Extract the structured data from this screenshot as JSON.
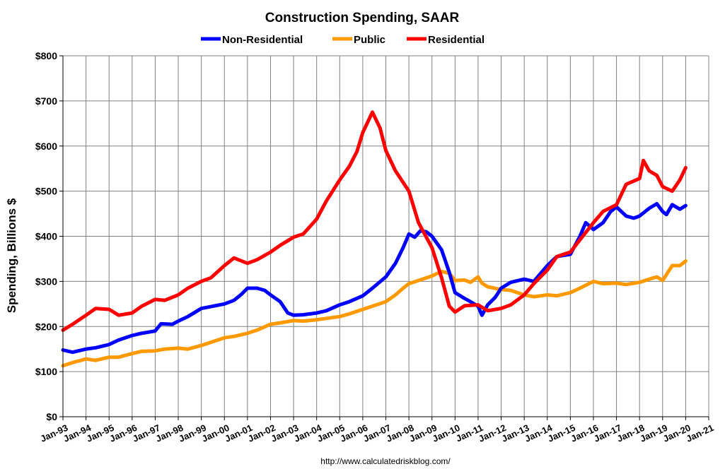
{
  "chart_data": {
    "type": "line",
    "title": "Construction Spending, SAAR",
    "ylabel": "Spending, Billions $",
    "xlabel": "",
    "source": "http://www.calculatedriskblog.com/",
    "ylim": [
      0,
      800
    ],
    "y_ticks": [
      "$0",
      "$100",
      "$200",
      "$300",
      "$400",
      "$500",
      "$600",
      "$700",
      "$800"
    ],
    "x_ticks": [
      "Jan-93",
      "Jan-94",
      "Jan-95",
      "Jan-96",
      "Jan-97",
      "Jan-98",
      "Jan-99",
      "Jan-00",
      "Jan-01",
      "Jan-02",
      "Jan-03",
      "Jan-04",
      "Jan-05",
      "Jan-06",
      "Jan-07",
      "Jan-08",
      "Jan-09",
      "Jan-10",
      "Jan-11",
      "Jan-12",
      "Jan-13",
      "Jan-14",
      "Jan-15",
      "Jan-16",
      "Jan-17",
      "Jan-18",
      "Jan-19",
      "Jan-20",
      "Jan-21"
    ],
    "grid": true,
    "legend_position": "top-center",
    "series": [
      {
        "name": "Non-Residential",
        "color": "#0000FF",
        "points": [
          [
            "1993-01",
            148
          ],
          [
            "1993-06",
            143
          ],
          [
            "1994-01",
            150
          ],
          [
            "1994-06",
            153
          ],
          [
            "1995-01",
            160
          ],
          [
            "1995-06",
            170
          ],
          [
            "1996-01",
            180
          ],
          [
            "1996-06",
            185
          ],
          [
            "1997-01",
            190
          ],
          [
            "1997-04",
            206
          ],
          [
            "1997-10",
            205
          ],
          [
            "1998-01",
            212
          ],
          [
            "1998-06",
            222
          ],
          [
            "1999-01",
            240
          ],
          [
            "1999-06",
            244
          ],
          [
            "2000-01",
            250
          ],
          [
            "2000-06",
            258
          ],
          [
            "2000-10",
            272
          ],
          [
            "2001-01",
            285
          ],
          [
            "2001-06",
            285
          ],
          [
            "2001-10",
            280
          ],
          [
            "2002-01",
            270
          ],
          [
            "2002-06",
            255
          ],
          [
            "2002-10",
            230
          ],
          [
            "2003-01",
            225
          ],
          [
            "2003-06",
            226
          ],
          [
            "2004-01",
            230
          ],
          [
            "2004-06",
            235
          ],
          [
            "2005-01",
            248
          ],
          [
            "2005-06",
            255
          ],
          [
            "2006-01",
            268
          ],
          [
            "2006-06",
            285
          ],
          [
            "2007-01",
            310
          ],
          [
            "2007-06",
            340
          ],
          [
            "2007-10",
            375
          ],
          [
            "2008-01",
            405
          ],
          [
            "2008-04",
            398
          ],
          [
            "2008-07",
            412
          ],
          [
            "2008-10",
            410
          ],
          [
            "2009-01",
            400
          ],
          [
            "2009-06",
            370
          ],
          [
            "2009-10",
            320
          ],
          [
            "2010-01",
            275
          ],
          [
            "2010-06",
            262
          ],
          [
            "2010-09",
            255
          ],
          [
            "2011-01",
            245
          ],
          [
            "2011-03",
            225
          ],
          [
            "2011-06",
            248
          ],
          [
            "2011-10",
            265
          ],
          [
            "2012-01",
            285
          ],
          [
            "2012-06",
            298
          ],
          [
            "2013-01",
            305
          ],
          [
            "2013-06",
            300
          ],
          [
            "2014-01",
            335
          ],
          [
            "2014-06",
            355
          ],
          [
            "2015-01",
            360
          ],
          [
            "2015-06",
            400
          ],
          [
            "2015-09",
            430
          ],
          [
            "2016-01",
            415
          ],
          [
            "2016-06",
            430
          ],
          [
            "2016-10",
            455
          ],
          [
            "2017-01",
            465
          ],
          [
            "2017-06",
            445
          ],
          [
            "2017-10",
            440
          ],
          [
            "2018-01",
            445
          ],
          [
            "2018-06",
            462
          ],
          [
            "2018-10",
            472
          ],
          [
            "2019-01",
            455
          ],
          [
            "2019-03",
            448
          ],
          [
            "2019-06",
            470
          ],
          [
            "2019-10",
            460
          ],
          [
            "2020-01",
            468
          ]
        ]
      },
      {
        "name": "Public",
        "color": "#FF9900",
        "points": [
          [
            "1993-01",
            113
          ],
          [
            "1993-06",
            120
          ],
          [
            "1994-01",
            128
          ],
          [
            "1994-06",
            125
          ],
          [
            "1995-01",
            132
          ],
          [
            "1995-06",
            132
          ],
          [
            "1996-01",
            140
          ],
          [
            "1996-06",
            145
          ],
          [
            "1997-01",
            146
          ],
          [
            "1997-06",
            150
          ],
          [
            "1998-01",
            152
          ],
          [
            "1998-06",
            150
          ],
          [
            "1999-01",
            158
          ],
          [
            "1999-06",
            165
          ],
          [
            "2000-01",
            175
          ],
          [
            "2000-06",
            178
          ],
          [
            "2001-01",
            185
          ],
          [
            "2001-06",
            192
          ],
          [
            "2002-01",
            205
          ],
          [
            "2002-06",
            208
          ],
          [
            "2003-01",
            213
          ],
          [
            "2003-06",
            212
          ],
          [
            "2004-01",
            215
          ],
          [
            "2004-06",
            218
          ],
          [
            "2005-01",
            222
          ],
          [
            "2005-06",
            228
          ],
          [
            "2006-01",
            238
          ],
          [
            "2006-06",
            245
          ],
          [
            "2007-01",
            255
          ],
          [
            "2007-06",
            270
          ],
          [
            "2007-10",
            285
          ],
          [
            "2008-01",
            295
          ],
          [
            "2008-06",
            302
          ],
          [
            "2009-01",
            312
          ],
          [
            "2009-06",
            322
          ],
          [
            "2009-10",
            318
          ],
          [
            "2010-01",
            302
          ],
          [
            "2010-06",
            303
          ],
          [
            "2010-09",
            298
          ],
          [
            "2011-01",
            310
          ],
          [
            "2011-03",
            296
          ],
          [
            "2011-06",
            288
          ],
          [
            "2012-01",
            282
          ],
          [
            "2012-06",
            280
          ],
          [
            "2013-01",
            270
          ],
          [
            "2013-06",
            266
          ],
          [
            "2014-01",
            270
          ],
          [
            "2014-06",
            268
          ],
          [
            "2015-01",
            275
          ],
          [
            "2015-06",
            285
          ],
          [
            "2016-01",
            300
          ],
          [
            "2016-06",
            295
          ],
          [
            "2017-01",
            296
          ],
          [
            "2017-06",
            293
          ],
          [
            "2018-01",
            298
          ],
          [
            "2018-06",
            305
          ],
          [
            "2018-10",
            310
          ],
          [
            "2019-01",
            302
          ],
          [
            "2019-06",
            335
          ],
          [
            "2019-10",
            335
          ],
          [
            "2020-01",
            345
          ]
        ]
      },
      {
        "name": "Residential",
        "color": "#FF0000",
        "points": [
          [
            "1993-01",
            192
          ],
          [
            "1993-06",
            205
          ],
          [
            "1994-01",
            225
          ],
          [
            "1994-06",
            240
          ],
          [
            "1995-01",
            238
          ],
          [
            "1995-06",
            225
          ],
          [
            "1996-01",
            230
          ],
          [
            "1996-06",
            245
          ],
          [
            "1997-01",
            260
          ],
          [
            "1997-06",
            258
          ],
          [
            "1998-01",
            270
          ],
          [
            "1998-06",
            285
          ],
          [
            "1999-01",
            300
          ],
          [
            "1999-06",
            308
          ],
          [
            "2000-01",
            335
          ],
          [
            "2000-06",
            352
          ],
          [
            "2001-01",
            340
          ],
          [
            "2001-06",
            348
          ],
          [
            "2002-01",
            365
          ],
          [
            "2002-06",
            380
          ],
          [
            "2003-01",
            398
          ],
          [
            "2003-06",
            405
          ],
          [
            "2004-01",
            438
          ],
          [
            "2004-06",
            478
          ],
          [
            "2005-01",
            525
          ],
          [
            "2005-06",
            555
          ],
          [
            "2005-10",
            588
          ],
          [
            "2006-01",
            630
          ],
          [
            "2006-06",
            675
          ],
          [
            "2006-10",
            640
          ],
          [
            "2007-01",
            590
          ],
          [
            "2007-06",
            545
          ],
          [
            "2008-01",
            500
          ],
          [
            "2008-06",
            430
          ],
          [
            "2009-01",
            375
          ],
          [
            "2009-06",
            308
          ],
          [
            "2009-10",
            245
          ],
          [
            "2010-01",
            232
          ],
          [
            "2010-06",
            246
          ],
          [
            "2011-01",
            248
          ],
          [
            "2011-06",
            235
          ],
          [
            "2012-01",
            240
          ],
          [
            "2012-06",
            248
          ],
          [
            "2013-01",
            270
          ],
          [
            "2013-06",
            295
          ],
          [
            "2014-01",
            325
          ],
          [
            "2014-06",
            355
          ],
          [
            "2015-01",
            365
          ],
          [
            "2015-06",
            392
          ],
          [
            "2016-01",
            430
          ],
          [
            "2016-06",
            455
          ],
          [
            "2017-01",
            470
          ],
          [
            "2017-06",
            515
          ],
          [
            "2018-01",
            528
          ],
          [
            "2018-03",
            568
          ],
          [
            "2018-06",
            545
          ],
          [
            "2018-10",
            535
          ],
          [
            "2019-01",
            510
          ],
          [
            "2019-06",
            500
          ],
          [
            "2019-10",
            525
          ],
          [
            "2020-01",
            552
          ]
        ]
      }
    ]
  }
}
